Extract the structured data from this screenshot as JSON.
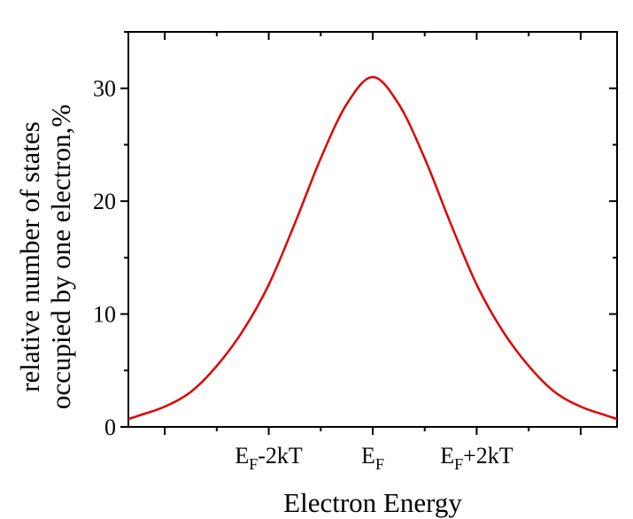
{
  "chart_data": {
    "type": "line",
    "xlabel": "Electron Energy",
    "ylabel_lines": [
      "relative number of states",
      "occupied by one electron,%"
    ],
    "x_ticks": [
      {
        "x": -2,
        "main": "E",
        "sub": "F",
        "tail": "-2kT"
      },
      {
        "x": 0,
        "main": "E",
        "sub": "F",
        "tail": ""
      },
      {
        "x": 2,
        "main": "E",
        "sub": "F",
        "tail": "+2kT"
      }
    ],
    "y_ticks": [
      "0",
      "10",
      "20",
      "30"
    ],
    "xlim": [
      -4.7,
      4.7
    ],
    "ylim": [
      0,
      35
    ],
    "grid": false,
    "series": [
      {
        "color": "#e00000",
        "x": [
          -4.7,
          -4.5,
          -4,
          -3.5,
          -3,
          -2.5,
          -2,
          -1.5,
          -1,
          -0.5,
          0,
          0.5,
          1,
          1.5,
          2,
          2.5,
          3,
          3.5,
          4,
          4.5,
          4.7
        ],
        "y": [
          0.7,
          1.0,
          1.8,
          3.1,
          5.4,
          8.5,
          12.6,
          18.0,
          23.8,
          28.6,
          31.0,
          28.6,
          23.8,
          18.0,
          12.6,
          8.5,
          5.4,
          3.1,
          1.8,
          1.0,
          0.7
        ]
      }
    ]
  }
}
